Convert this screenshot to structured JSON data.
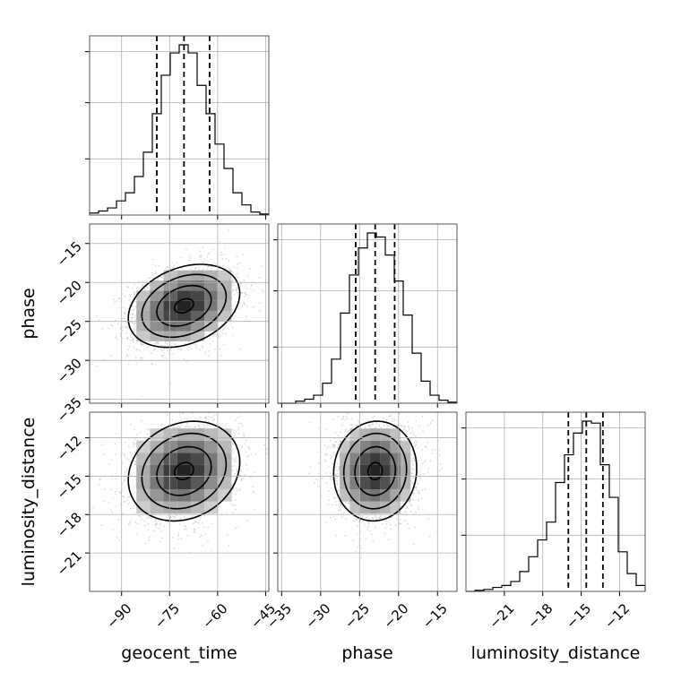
{
  "chart_data": {
    "type": "corner",
    "parameters": [
      "geocent_time",
      "phase",
      "luminosity_distance"
    ],
    "ranges": {
      "geocent_time": [
        -100,
        -44
      ],
      "phase": [
        -35.5,
        -12.5
      ],
      "luminosity_distance": [
        -24,
        -10
      ]
    },
    "tick_labels": {
      "geocent_time": [
        "−90",
        "−75",
        "−60",
        "−45"
      ],
      "phase": [
        "−35",
        "−30",
        "−25",
        "−20",
        "−15"
      ],
      "luminosity_distance": [
        "−21",
        "−18",
        "−15",
        "−12"
      ]
    },
    "grid": true,
    "quantiles": {
      "geocent_time": [
        -79,
        -70.5,
        -62.5
      ],
      "phase": [
        -25.5,
        -23,
        -20.5
      ],
      "luminosity_distance": [
        -16,
        -14.6,
        -13.3
      ]
    },
    "histograms": {
      "geocent_time": {
        "edges": [
          -100,
          -97.2,
          -94.4,
          -91.6,
          -88.8,
          -86,
          -83.2,
          -80.4,
          -77.6,
          -74.8,
          -72,
          -69.2,
          -66.4,
          -63.6,
          -60.8,
          -58,
          -55.2,
          -52.4,
          -49.6,
          -46.8,
          -44
        ],
        "counts": [
          2,
          4,
          7,
          14,
          22,
          38,
          62,
          100,
          138,
          160,
          168,
          160,
          128,
          100,
          70,
          46,
          22,
          10,
          3,
          1
        ]
      },
      "phase": {
        "edges": [
          -35.5,
          -34.35,
          -33.2,
          -32.05,
          -30.9,
          -29.75,
          -28.6,
          -27.45,
          -26.3,
          -25.15,
          -24,
          -22.85,
          -21.7,
          -20.55,
          -19.4,
          -18.25,
          -17.1,
          -15.95,
          -14.8,
          -13.65,
          -12.5
        ],
        "counts": [
          0,
          0,
          2,
          4,
          8,
          20,
          44,
          90,
          128,
          155,
          170,
          166,
          148,
          122,
          88,
          50,
          22,
          8,
          3,
          1
        ]
      },
      "luminosity_distance": {
        "edges": [
          -24,
          -23.3,
          -22.6,
          -21.9,
          -21.2,
          -20.5,
          -19.8,
          -19.1,
          -18.4,
          -17.7,
          -17,
          -16.3,
          -15.6,
          -14.9,
          -14.2,
          -13.5,
          -12.8,
          -12.1,
          -11.4,
          -10.7,
          -10
        ],
        "counts": [
          0,
          1,
          2,
          4,
          6,
          10,
          20,
          35,
          52,
          70,
          110,
          138,
          160,
          172,
          170,
          128,
          95,
          40,
          18,
          6
        ]
      }
    },
    "pair_stats": {
      "phase|geocent_time": {
        "mean": [
          -70.5,
          -23.0
        ],
        "sd": [
          8.5,
          2.6
        ],
        "corr": 0.3
      },
      "luminosity_distance|geocent_time": {
        "mean": [
          -70.5,
          -14.6
        ],
        "sd": [
          8.5,
          1.9
        ],
        "corr": 0.18
      },
      "luminosity_distance|phase": {
        "mean": [
          -23.0,
          -14.6
        ],
        "sd": [
          2.6,
          1.9
        ],
        "corr": 0.05
      }
    }
  },
  "axis_titles": {
    "bottom": [
      "geocent_time",
      "phase",
      "luminosity_distance"
    ],
    "left": [
      "phase",
      "luminosity_distance"
    ]
  }
}
